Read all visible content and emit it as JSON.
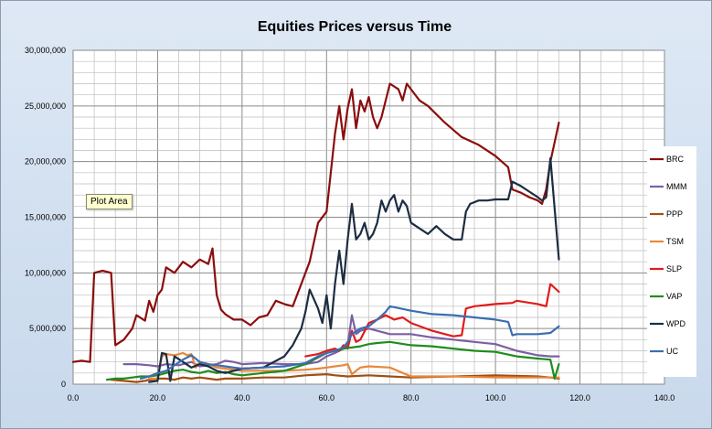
{
  "tooltip": "Plot Area",
  "chart_data": {
    "type": "line",
    "title": "Equities Prices versus Time",
    "xlabel": "",
    "ylabel": "",
    "xlim": [
      0,
      140
    ],
    "ylim": [
      0,
      30000000
    ],
    "x_ticks": [
      0,
      20,
      40,
      60,
      80,
      100,
      120,
      140
    ],
    "x_tick_labels": [
      "0.0",
      "20.0",
      "40.0",
      "60.0",
      "80.0",
      "100.0",
      "120.0",
      "140.0"
    ],
    "y_ticks": [
      0,
      5000000,
      10000000,
      15000000,
      20000000,
      25000000,
      30000000
    ],
    "y_tick_labels": [
      "0",
      "5,000,000",
      "10,000,000",
      "15,000,000",
      "20,000,000",
      "25,000,000",
      "30,000,000"
    ],
    "grid": true,
    "legend": "right",
    "series": [
      {
        "name": "BRC",
        "color": "#8b0d0d",
        "x": [
          0,
          2,
          4,
          5,
          7,
          9,
          10,
          12,
          14,
          15,
          17,
          18,
          19,
          20,
          21,
          22,
          24,
          26,
          28,
          30,
          32,
          33,
          34,
          35,
          36,
          38,
          40,
          42,
          44,
          46,
          48,
          50,
          52,
          54,
          56,
          58,
          60,
          62,
          63,
          64,
          65,
          66,
          67,
          68,
          69,
          70,
          71,
          72,
          73,
          75,
          77,
          78,
          79,
          80,
          82,
          84,
          88,
          92,
          96,
          100,
          103,
          104,
          106,
          108,
          110,
          111,
          112,
          113,
          115
        ],
        "y": [
          2000000,
          2100000,
          2000000,
          10000000,
          10200000,
          10000000,
          3500000,
          4000000,
          5000000,
          6200000,
          5700000,
          7500000,
          6500000,
          8000000,
          8500000,
          10500000,
          10000000,
          11000000,
          10500000,
          11200000,
          10800000,
          12200000,
          8000000,
          6700000,
          6300000,
          5800000,
          5800000,
          5300000,
          6000000,
          6200000,
          7500000,
          7200000,
          7000000,
          9000000,
          11000000,
          14500000,
          15500000,
          22500000,
          25000000,
          22000000,
          24800000,
          26500000,
          23000000,
          25500000,
          24500000,
          25800000,
          24000000,
          23000000,
          24000000,
          27000000,
          26500000,
          25500000,
          27000000,
          26500000,
          25500000,
          25000000,
          23500000,
          22200000,
          21500000,
          20500000,
          19500000,
          17500000,
          17200000,
          16800000,
          16500000,
          16200000,
          17500000,
          20000000,
          23500000
        ]
      },
      {
        "name": "MMM",
        "color": "#7c5fa6",
        "x": [
          12,
          15,
          18,
          20,
          22,
          25,
          28,
          30,
          32,
          34,
          36,
          38,
          40,
          45,
          50,
          55,
          58,
          60,
          62,
          64,
          65,
          66,
          67,
          68,
          70,
          75,
          80,
          85,
          90,
          95,
          100,
          105,
          110,
          113,
          115
        ],
        "y": [
          1800000,
          1800000,
          1700000,
          1600000,
          1800000,
          1700000,
          2000000,
          1600000,
          1700000,
          1800000,
          2100000,
          2000000,
          1800000,
          1900000,
          1800000,
          1800000,
          2000000,
          2500000,
          2800000,
          3200000,
          3500000,
          6200000,
          4500000,
          4800000,
          5000000,
          4500000,
          4500000,
          4200000,
          4000000,
          3800000,
          3600000,
          3000000,
          2600000,
          2500000,
          2500000
        ]
      },
      {
        "name": "PPP",
        "color": "#a04e12",
        "x": [
          9,
          12,
          15,
          17,
          18,
          20,
          22,
          24,
          26,
          28,
          30,
          32,
          34,
          36,
          40,
          45,
          50,
          55,
          60,
          62,
          65,
          70,
          75,
          80,
          90,
          100,
          110,
          113,
          115
        ],
        "y": [
          400000,
          300000,
          200000,
          300000,
          400000,
          500000,
          500000,
          400000,
          600000,
          500000,
          600000,
          500000,
          400000,
          500000,
          500000,
          600000,
          600000,
          800000,
          900000,
          800000,
          700000,
          800000,
          700000,
          600000,
          700000,
          800000,
          700000,
          600000,
          500000
        ]
      },
      {
        "name": "TSM",
        "color": "#e8883a",
        "x": [
          18,
          20,
          21,
          22,
          24,
          26,
          27,
          28,
          29,
          30,
          32,
          34,
          36,
          38,
          40,
          45,
          50,
          55,
          58,
          60,
          62,
          64,
          65,
          66,
          67,
          68,
          70,
          75,
          80,
          90,
          100,
          110,
          115
        ],
        "y": [
          500000,
          500000,
          2500000,
          2700000,
          2600000,
          2800000,
          2600000,
          2700000,
          1500000,
          2000000,
          1800000,
          1500000,
          1400000,
          1300000,
          1200000,
          1200000,
          1200000,
          1300000,
          1400000,
          1500000,
          1600000,
          1700000,
          1800000,
          900000,
          1200000,
          1500000,
          1600000,
          1500000,
          700000,
          700000,
          600000,
          600000,
          600000
        ]
      },
      {
        "name": "SLP",
        "color": "#e31a1a",
        "x": [
          55,
          58,
          60,
          62,
          63,
          64,
          65,
          66,
          67,
          68,
          70,
          72,
          74,
          76,
          78,
          80,
          85,
          90,
          92,
          93,
          95,
          100,
          104,
          105,
          110,
          112,
          113,
          115
        ],
        "y": [
          2500000,
          2700000,
          3000000,
          3200000,
          3000000,
          3500000,
          3200000,
          4800000,
          3800000,
          4000000,
          5500000,
          5800000,
          6200000,
          5800000,
          6000000,
          5500000,
          4800000,
          4300000,
          4400000,
          6800000,
          7000000,
          7200000,
          7300000,
          7500000,
          7200000,
          7000000,
          9000000,
          8300000
        ]
      },
      {
        "name": "VAP",
        "color": "#1f8c1f",
        "x": [
          8,
          10,
          12,
          14,
          16,
          18,
          20,
          22,
          24,
          26,
          28,
          30,
          32,
          34,
          36,
          38,
          40,
          45,
          50,
          55,
          60,
          62,
          64,
          66,
          68,
          70,
          72,
          75,
          80,
          85,
          90,
          95,
          100,
          105,
          110,
          113,
          114,
          115
        ],
        "y": [
          400000,
          500000,
          500000,
          600000,
          700000,
          700000,
          800000,
          1000000,
          1200000,
          1300000,
          1100000,
          1000000,
          1200000,
          1000000,
          1100000,
          900000,
          800000,
          1000000,
          1200000,
          1800000,
          2800000,
          3000000,
          3200000,
          3300000,
          3400000,
          3600000,
          3700000,
          3800000,
          3500000,
          3400000,
          3200000,
          3000000,
          2900000,
          2500000,
          2300000,
          2200000,
          500000,
          1800000
        ]
      },
      {
        "name": "WPD",
        "color": "#1c2d42",
        "x": [
          18,
          20,
          21,
          22,
          23,
          24,
          26,
          28,
          30,
          32,
          34,
          36,
          38,
          40,
          45,
          50,
          52,
          54,
          55,
          56,
          58,
          59,
          60,
          61,
          62,
          63,
          64,
          65,
          66,
          67,
          68,
          69,
          70,
          71,
          72,
          73,
          74,
          75,
          76,
          77,
          78,
          79,
          80,
          82,
          84,
          86,
          88,
          90,
          92,
          93,
          94,
          96,
          98,
          100,
          103,
          104,
          106,
          108,
          110,
          111,
          112,
          113,
          115
        ],
        "y": [
          200000,
          300000,
          2800000,
          2700000,
          300000,
          2500000,
          2000000,
          1500000,
          1800000,
          1600000,
          1200000,
          1000000,
          1200000,
          1400000,
          1500000,
          2500000,
          3500000,
          5000000,
          6500000,
          8500000,
          6800000,
          5500000,
          8000000,
          5000000,
          9000000,
          12000000,
          9000000,
          13000000,
          16200000,
          13000000,
          13500000,
          14500000,
          13000000,
          13500000,
          14500000,
          16500000,
          15500000,
          16500000,
          17000000,
          15500000,
          16500000,
          16000000,
          14500000,
          14000000,
          13500000,
          14200000,
          13500000,
          13000000,
          13000000,
          15500000,
          16200000,
          16500000,
          16500000,
          16600000,
          16600000,
          18200000,
          17800000,
          17300000,
          16800000,
          16500000,
          16800000,
          20300000,
          11200000
        ]
      },
      {
        "name": "UC",
        "color": "#3b6eb0",
        "x": [
          16,
          18,
          20,
          22,
          24,
          26,
          28,
          30,
          32,
          34,
          36,
          38,
          40,
          45,
          50,
          55,
          58,
          60,
          62,
          64,
          65,
          66,
          68,
          70,
          72,
          74,
          75,
          80,
          85,
          90,
          95,
          100,
          103,
          104,
          105,
          110,
          113,
          115
        ],
        "y": [
          500000,
          700000,
          1000000,
          1200000,
          1700000,
          2200000,
          2600000,
          2000000,
          1800000,
          1700000,
          1600000,
          1500000,
          1400000,
          1500000,
          1600000,
          1900000,
          2500000,
          2800000,
          3000000,
          3300000,
          3800000,
          4500000,
          5000000,
          5200000,
          5800000,
          6500000,
          7000000,
          6600000,
          6300000,
          6200000,
          6000000,
          5800000,
          5600000,
          4400000,
          4500000,
          4500000,
          4600000,
          5200000
        ]
      }
    ]
  }
}
